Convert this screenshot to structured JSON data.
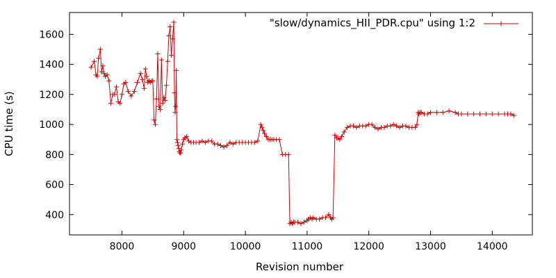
{
  "chart_data": {
    "type": "line",
    "title": "",
    "xlabel": "Revision number",
    "ylabel": "CPU time (s)",
    "xlim": [
      7150,
      14650
    ],
    "ylim": [
      265,
      1745
    ],
    "xticks": [
      "8000",
      "9000",
      "10000",
      "11000",
      "12000",
      "13000",
      "14000"
    ],
    "yticks": [
      "400",
      "600",
      "800",
      "1000",
      "1200",
      "1400",
      "1600"
    ],
    "legend_position": "top-right",
    "grid": false,
    "series": [
      {
        "name": "\"slow/dynamics_HII_PDR.cpu\" using 1:2",
        "color": "#cc0000",
        "marker": "plus",
        "x": [
          7500,
          7550,
          7580,
          7600,
          7620,
          7650,
          7670,
          7690,
          7710,
          7730,
          7760,
          7790,
          7820,
          7850,
          7880,
          7910,
          7940,
          7970,
          8000,
          8030,
          8060,
          8100,
          8150,
          8200,
          8250,
          8300,
          8330,
          8360,
          8380,
          8400,
          8420,
          8440,
          8460,
          8480,
          8500,
          8520,
          8540,
          8560,
          8580,
          8600,
          8620,
          8640,
          8660,
          8680,
          8700,
          8720,
          8740,
          8760,
          8780,
          8800,
          8820,
          8840,
          8850,
          8860,
          8870,
          8880,
          8890,
          8900,
          8910,
          8920,
          8930,
          8940,
          8950,
          8960,
          8980,
          9000,
          9020,
          9050,
          9080,
          9120,
          9160,
          9200,
          9250,
          9300,
          9350,
          9400,
          9450,
          9500,
          9550,
          9600,
          9650,
          9700,
          9750,
          9800,
          9850,
          9900,
          9950,
          10000,
          10050,
          10100,
          10150,
          10200,
          10250,
          10270,
          10290,
          10310,
          10340,
          10370,
          10400,
          10430,
          10460,
          10500,
          10550,
          10600,
          10650,
          10700,
          10720,
          10740,
          10760,
          10780,
          10800,
          10850,
          10900,
          10950,
          11000,
          11020,
          11050,
          11080,
          11100,
          11150,
          11200,
          11250,
          11300,
          11350,
          11380,
          11400,
          11420,
          11450,
          11480,
          11500,
          11530,
          11560,
          11600,
          11650,
          11700,
          11750,
          11800,
          11850,
          11900,
          11950,
          12000,
          12050,
          12100,
          12150,
          12200,
          12250,
          12300,
          12350,
          12400,
          12450,
          12500,
          12550,
          12600,
          12650,
          12700,
          12750,
          12780,
          12800,
          12810,
          12830,
          12850,
          12900,
          12950,
          13000,
          13100,
          13200,
          13300,
          13400,
          13450,
          13500,
          13600,
          13700,
          13800,
          13900,
          14000,
          14100,
          14200,
          14250,
          14300,
          14350
        ],
        "y": [
          1380,
          1420,
          1330,
          1320,
          1440,
          1500,
          1350,
          1390,
          1340,
          1320,
          1330,
          1290,
          1140,
          1200,
          1200,
          1250,
          1150,
          1140,
          1200,
          1270,
          1280,
          1220,
          1190,
          1220,
          1280,
          1340,
          1300,
          1240,
          1370,
          1320,
          1280,
          1290,
          1280,
          1290,
          1290,
          1030,
          1000,
          1170,
          1470,
          1120,
          1100,
          1430,
          1140,
          1180,
          1160,
          1260,
          1420,
          1590,
          1650,
          1460,
          1570,
          1680,
          1210,
          1080,
          1120,
          1360,
          900,
          880,
          860,
          840,
          820,
          810,
          810,
          830,
          870,
          900,
          910,
          920,
          890,
          880,
          880,
          880,
          880,
          890,
          880,
          890,
          890,
          870,
          870,
          860,
          850,
          860,
          880,
          870,
          880,
          880,
          880,
          880,
          880,
          880,
          880,
          890,
          1000,
          980,
          960,
          940,
          920,
          900,
          900,
          900,
          900,
          900,
          900,
          800,
          800,
          800,
          340,
          350,
          340,
          350,
          350,
          350,
          340,
          350,
          360,
          370,
          380,
          370,
          380,
          370,
          370,
          380,
          380,
          400,
          380,
          370,
          380,
          930,
          910,
          910,
          900,
          920,
          950,
          980,
          990,
          990,
          980,
          990,
          990,
          990,
          1000,
          1000,
          980,
          970,
          980,
          980,
          990,
          990,
          1000,
          990,
          980,
          990,
          990,
          980,
          980,
          980,
          1000,
          1080,
          1070,
          1080,
          1080,
          1070,
          1070,
          1080,
          1080,
          1080,
          1090,
          1080,
          1070,
          1070,
          1070,
          1070,
          1070,
          1070,
          1070,
          1070,
          1070,
          1070,
          1070,
          1060
        ]
      }
    ]
  }
}
